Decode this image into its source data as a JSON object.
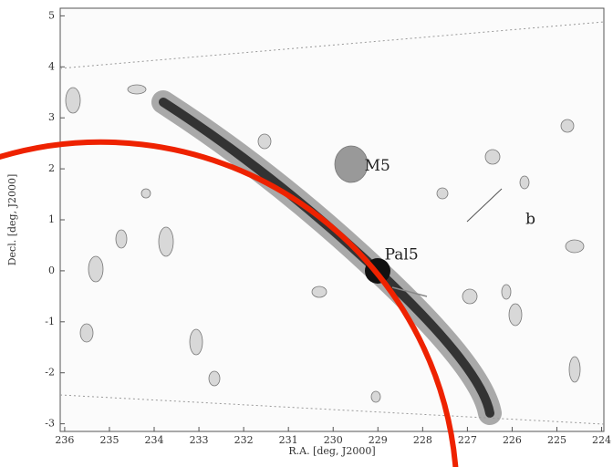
{
  "chart_data": {
    "type": "map",
    "x_label": "R.A. [deg, J2000]",
    "y_label": "Decl. [deg, J2000]",
    "xlim": [
      236.1,
      223.95
    ],
    "ylim": [
      -3.15,
      5.15
    ],
    "xticks": [
      236,
      235,
      234,
      233,
      232,
      231,
      230,
      229,
      228,
      227,
      226,
      225,
      224
    ],
    "yticks": [
      -3,
      -2,
      -1,
      0,
      1,
      2,
      3,
      4,
      5
    ],
    "annotations": [
      {
        "text": "M5",
        "x": 229.3,
        "y": 2.05
      },
      {
        "text": "Pal5",
        "x": 228.85,
        "y": 0.3
      },
      {
        "text": "b",
        "x": 225.7,
        "y": 1.0
      }
    ]
  }
}
